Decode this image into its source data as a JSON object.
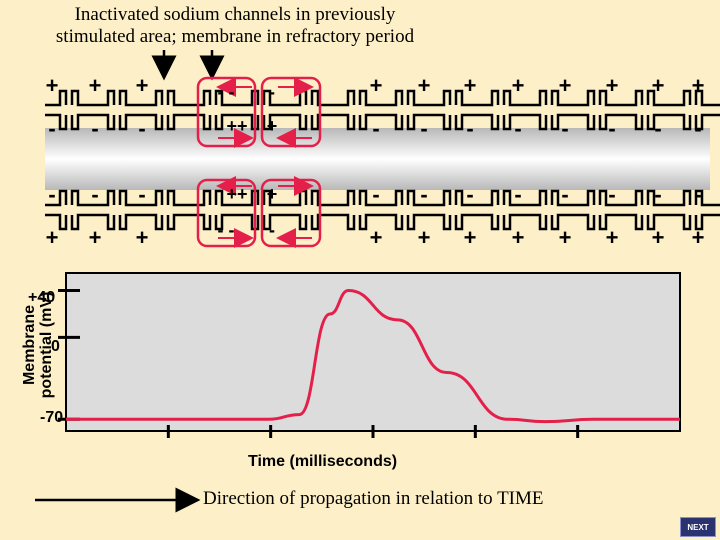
{
  "caption": {
    "line1": "Inactivated sodium channels in previously",
    "line2": "stimulated area; membrane in refractory period"
  },
  "membrane": {
    "plus_symbol": "+",
    "minus_symbol": "-",
    "depolarized_top_inner": "++",
    "depolarized_top_outer": "- -",
    "depolarized_bottom_inner": "++",
    "depolarized_bottom_outer": "- -",
    "leading_top_outer": "-",
    "leading_top_inner": "+",
    "leading_bottom_outer": "-",
    "leading_bottom_inner": "+"
  },
  "chart_data": {
    "type": "line",
    "ylabel_line1": "Membrane",
    "ylabel_line2": "potential (mV)",
    "xlabel": "Time (milliseconds)",
    "y_ticks": [
      "+40",
      "0",
      "-70"
    ],
    "ylim": [
      -80,
      55
    ],
    "xlim": [
      0,
      10
    ],
    "series": [
      {
        "color": "#E4204A",
        "x": [
          0,
          3.3,
          3.8,
          4.3,
          4.6,
          5.4,
          6.2,
          7.2,
          7.8,
          8.6,
          10
        ],
        "y": [
          -70,
          -70,
          -66,
          20,
          40,
          15,
          -30,
          -70,
          -72,
          -70,
          -70
        ]
      }
    ]
  },
  "footer": {
    "direction_text": "Direction of propagation in relation to TIME",
    "next_label": "NEXT"
  },
  "colors": {
    "background": "#FDF0C8",
    "highlight": "#E4204A",
    "chart_bg": "#DCDCDC"
  }
}
